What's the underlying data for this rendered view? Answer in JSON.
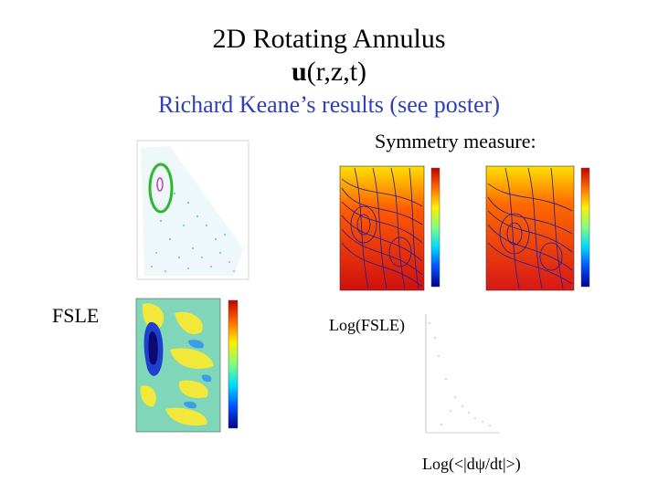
{
  "slide": {
    "title_line1": "2D Rotating Annulus",
    "title_line2_bold": "u",
    "title_line2_rest": "(r,z,t)",
    "subtitle": "Richard Keane’s results (see poster)",
    "symmetry_label": "Symmetry measure:",
    "fsle_label": "FSLE",
    "log_fsle_label": "Log(FSLE)",
    "log_dpsi_label": "Log(<|dψ/dt|>)"
  },
  "colors": {
    "subtitle": "#2f3fb8",
    "contour_blue": "#1a1aa0",
    "colorbar": [
      "#00008f",
      "#0050ff",
      "#00ddff",
      "#7fff7f",
      "#ffee00",
      "#ff6600",
      "#c00000"
    ]
  }
}
